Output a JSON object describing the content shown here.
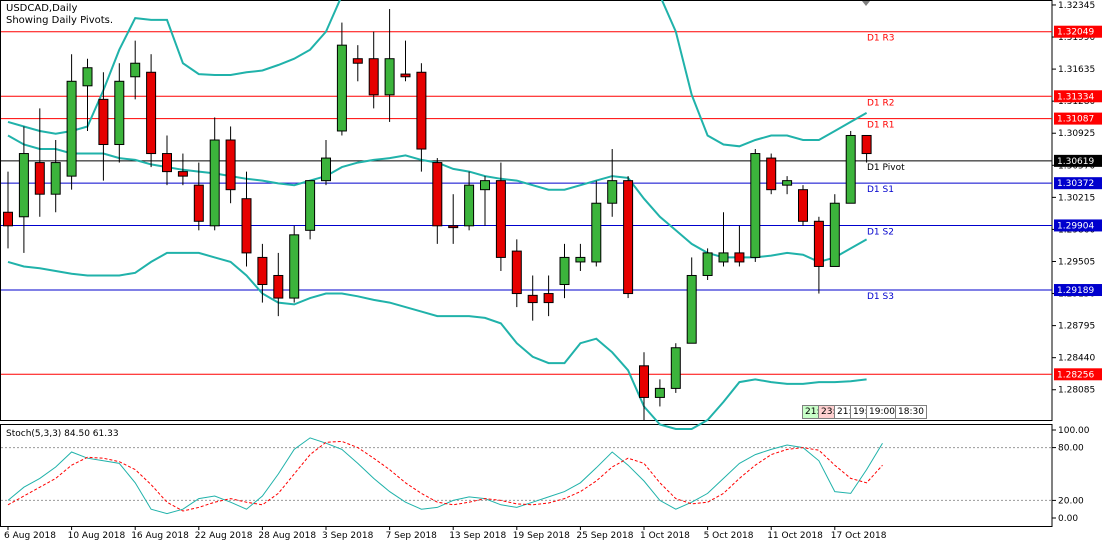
{
  "header": {
    "symbol": "USDCAD,Daily",
    "subtitle": "Showing Daily Pivots."
  },
  "colors": {
    "bull": "#3cb43c",
    "bear": "#e60000",
    "bollinger": "#20b2aa",
    "resistance": "#ff0000",
    "support": "#0000cd",
    "pivot": "#000000",
    "stoch_main": "#20b2aa",
    "stoch_signal": "#ff0000",
    "grid": "#000000"
  },
  "sessions": [
    "21:",
    "23:",
    "21:",
    "19:",
    "19:00",
    "18:30"
  ],
  "chart_data": [
    {
      "type": "candlestick",
      "symbol": "USDCAD",
      "timeframe": "Daily",
      "ylim": [
        1.2775,
        1.324
      ],
      "y_ticks": [
        "1.32345",
        "1.31990",
        "1.31635",
        "1.31280",
        "1.30925",
        "1.30570",
        "1.30215",
        "1.29860",
        "1.29505",
        "1.29150",
        "1.28795",
        "1.28440",
        "1.28085"
      ],
      "x_ticks": [
        "6 Aug 2018",
        "10 Aug 2018",
        "16 Aug 2018",
        "22 Aug 2018",
        "28 Aug 2018",
        "3 Sep 2018",
        "7 Sep 2018",
        "13 Sep 2018",
        "19 Sep 2018",
        "25 Sep 2018",
        "1 Oct 2018",
        "5 Oct 2018",
        "11 Oct 2018",
        "17 Oct 2018"
      ],
      "candles": [
        {
          "o": 1.3005,
          "h": 1.305,
          "l": 1.2965,
          "c": 1.299
        },
        {
          "o": 1.3,
          "h": 1.31,
          "l": 1.296,
          "c": 1.307
        },
        {
          "o": 1.306,
          "h": 1.312,
          "l": 1.3,
          "c": 1.3025
        },
        {
          "o": 1.3025,
          "h": 1.3085,
          "l": 1.3005,
          "c": 1.306
        },
        {
          "o": 1.3045,
          "h": 1.318,
          "l": 1.303,
          "c": 1.315
        },
        {
          "o": 1.3145,
          "h": 1.3175,
          "l": 1.3095,
          "c": 1.3165
        },
        {
          "o": 1.313,
          "h": 1.316,
          "l": 1.304,
          "c": 1.308
        },
        {
          "o": 1.308,
          "h": 1.317,
          "l": 1.306,
          "c": 1.315
        },
        {
          "o": 1.3155,
          "h": 1.3195,
          "l": 1.313,
          "c": 1.317
        },
        {
          "o": 1.316,
          "h": 1.318,
          "l": 1.3055,
          "c": 1.307
        },
        {
          "o": 1.307,
          "h": 1.309,
          "l": 1.3035,
          "c": 1.305
        },
        {
          "o": 1.305,
          "h": 1.307,
          "l": 1.3035,
          "c": 1.3045
        },
        {
          "o": 1.3035,
          "h": 1.306,
          "l": 1.2985,
          "c": 1.2995
        },
        {
          "o": 1.299,
          "h": 1.311,
          "l": 1.2985,
          "c": 1.3085
        },
        {
          "o": 1.3085,
          "h": 1.31,
          "l": 1.3015,
          "c": 1.303
        },
        {
          "o": 1.302,
          "h": 1.305,
          "l": 1.2945,
          "c": 1.296
        },
        {
          "o": 1.2955,
          "h": 1.297,
          "l": 1.2905,
          "c": 1.2925
        },
        {
          "o": 1.2935,
          "h": 1.296,
          "l": 1.289,
          "c": 1.291
        },
        {
          "o": 1.291,
          "h": 1.299,
          "l": 1.2905,
          "c": 1.298
        },
        {
          "o": 1.2985,
          "h": 1.304,
          "l": 1.2975,
          "c": 1.304
        },
        {
          "o": 1.304,
          "h": 1.3085,
          "l": 1.3035,
          "c": 1.3065
        },
        {
          "o": 1.3095,
          "h": 1.3215,
          "l": 1.309,
          "c": 1.319
        },
        {
          "o": 1.3175,
          "h": 1.319,
          "l": 1.315,
          "c": 1.317
        },
        {
          "o": 1.3175,
          "h": 1.3205,
          "l": 1.312,
          "c": 1.3135
        },
        {
          "o": 1.3135,
          "h": 1.323,
          "l": 1.3105,
          "c": 1.3175
        },
        {
          "o": 1.3158,
          "h": 1.3195,
          "l": 1.315,
          "c": 1.3155
        },
        {
          "o": 1.316,
          "h": 1.317,
          "l": 1.305,
          "c": 1.3075
        },
        {
          "o": 1.306,
          "h": 1.3065,
          "l": 1.297,
          "c": 1.299
        },
        {
          "o": 1.299,
          "h": 1.3025,
          "l": 1.297,
          "c": 1.2988
        },
        {
          "o": 1.299,
          "h": 1.305,
          "l": 1.2985,
          "c": 1.3035
        },
        {
          "o": 1.303,
          "h": 1.3045,
          "l": 1.299,
          "c": 1.304
        },
        {
          "o": 1.304,
          "h": 1.306,
          "l": 1.294,
          "c": 1.2955
        },
        {
          "o": 1.2962,
          "h": 1.2975,
          "l": 1.29,
          "c": 1.2915
        },
        {
          "o": 1.2913,
          "h": 1.2935,
          "l": 1.2885,
          "c": 1.2905
        },
        {
          "o": 1.2915,
          "h": 1.2935,
          "l": 1.289,
          "c": 1.2905
        },
        {
          "o": 1.2925,
          "h": 1.297,
          "l": 1.291,
          "c": 1.2955
        },
        {
          "o": 1.295,
          "h": 1.297,
          "l": 1.294,
          "c": 1.2955
        },
        {
          "o": 1.295,
          "h": 1.304,
          "l": 1.2945,
          "c": 1.3015
        },
        {
          "o": 1.3015,
          "h": 1.3075,
          "l": 1.3,
          "c": 1.304
        },
        {
          "o": 1.304,
          "h": 1.3045,
          "l": 1.291,
          "c": 1.2915
        },
        {
          "o": 1.2835,
          "h": 1.285,
          "l": 1.2775,
          "c": 1.28
        },
        {
          "o": 1.28,
          "h": 1.282,
          "l": 1.279,
          "c": 1.281
        },
        {
          "o": 1.281,
          "h": 1.286,
          "l": 1.2805,
          "c": 1.2855
        },
        {
          "o": 1.286,
          "h": 1.2955,
          "l": 1.286,
          "c": 1.2935
        },
        {
          "o": 1.2935,
          "h": 1.2965,
          "l": 1.293,
          "c": 1.296
        },
        {
          "o": 1.295,
          "h": 1.3005,
          "l": 1.2945,
          "c": 1.296
        },
        {
          "o": 1.296,
          "h": 1.299,
          "l": 1.2945,
          "c": 1.295
        },
        {
          "o": 1.2955,
          "h": 1.3075,
          "l": 1.295,
          "c": 1.307
        },
        {
          "o": 1.3065,
          "h": 1.307,
          "l": 1.3025,
          "c": 1.303
        },
        {
          "o": 1.3035,
          "h": 1.3045,
          "l": 1.3025,
          "c": 1.304
        },
        {
          "o": 1.303,
          "h": 1.3035,
          "l": 1.299,
          "c": 1.2995
        },
        {
          "o": 1.2995,
          "h": 1.3,
          "l": 1.2915,
          "c": 1.2945
        },
        {
          "o": 1.2945,
          "h": 1.3025,
          "l": 1.2945,
          "c": 1.3015
        },
        {
          "o": 1.3015,
          "h": 1.3095,
          "l": 1.3015,
          "c": 1.309
        },
        {
          "o": 1.309,
          "h": 1.309,
          "l": 1.306,
          "c": 1.307
        }
      ],
      "bollinger": {
        "upper": [
          1.3105,
          1.31,
          1.3095,
          1.3092,
          1.3095,
          1.31,
          1.314,
          1.3185,
          1.322,
          1.3218,
          1.3218,
          1.317,
          1.3158,
          1.3157,
          1.3157,
          1.316,
          1.3162,
          1.3168,
          1.3175,
          1.3185,
          1.3205,
          1.3245,
          1.3265,
          1.3275,
          1.3275,
          1.3285,
          1.3287,
          1.328,
          1.3265,
          1.3265,
          1.3265,
          1.3265,
          1.3265,
          1.3265,
          1.327,
          1.3275,
          1.3278,
          1.328,
          1.3278,
          1.3277,
          1.327,
          1.3245,
          1.3205,
          1.3135,
          1.309,
          1.308,
          1.3078,
          1.3085,
          1.309,
          1.309,
          1.3085,
          1.3085,
          1.3095,
          1.3105,
          1.3115
        ],
        "middle": [
          1.309,
          1.308,
          1.3075,
          1.3075,
          1.307,
          1.307,
          1.307,
          1.3065,
          1.3063,
          1.3058,
          1.3055,
          1.3052,
          1.305,
          1.3048,
          1.3045,
          1.3042,
          1.304,
          1.3037,
          1.3035,
          1.304,
          1.3045,
          1.3055,
          1.306,
          1.3063,
          1.3065,
          1.3068,
          1.3063,
          1.306,
          1.3053,
          1.305,
          1.3045,
          1.3042,
          1.304,
          1.3035,
          1.303,
          1.303,
          1.3035,
          1.304,
          1.3045,
          1.3043,
          1.302,
          1.3,
          1.2985,
          1.297,
          1.296,
          1.2955,
          1.2955,
          1.2955,
          1.2957,
          1.296,
          1.2958,
          1.295,
          1.2955,
          1.2965,
          1.2975
        ],
        "lower": [
          1.295,
          1.2945,
          1.2943,
          1.294,
          1.2937,
          1.2935,
          1.2935,
          1.2935,
          1.2938,
          1.295,
          1.296,
          1.296,
          1.296,
          1.2955,
          1.295,
          1.2935,
          1.2915,
          1.2905,
          1.2903,
          1.291,
          1.2915,
          1.2915,
          1.2912,
          1.2908,
          1.2905,
          1.29,
          1.2895,
          1.289,
          1.289,
          1.289,
          1.2888,
          1.2882,
          1.286,
          1.2845,
          1.2838,
          1.2838,
          1.286,
          1.2865,
          1.285,
          1.283,
          1.279,
          1.277,
          1.2765,
          1.2765,
          1.2775,
          1.2795,
          1.2817,
          1.282,
          1.2817,
          1.2815,
          1.2815,
          1.2817,
          1.2817,
          1.2818,
          1.282
        ]
      },
      "pivot_levels": [
        {
          "label": "D1 R3",
          "value": 1.32049,
          "value_text": "1.32049",
          "kind": "resistance"
        },
        {
          "label": "D1 R2",
          "value": 1.31334,
          "value_text": "1.31334",
          "kind": "resistance"
        },
        {
          "label": "D1 R1",
          "value": 1.31087,
          "value_text": "1.31087",
          "kind": "resistance"
        },
        {
          "label": "D1 Pivot",
          "value": 1.30619,
          "value_text": "1.30619",
          "kind": "pivot"
        },
        {
          "label": "D1 S1",
          "value": 1.30372,
          "value_text": "1.30372",
          "kind": "support"
        },
        {
          "label": "D1 S2",
          "value": 1.29904,
          "value_text": "1.29904",
          "kind": "support"
        },
        {
          "label": "D1 S3",
          "value": 1.29189,
          "value_text": "1.29189",
          "kind": "support"
        },
        {
          "label": "",
          "value": 1.28256,
          "value_text": "1.28256",
          "kind": "resistance"
        }
      ]
    },
    {
      "type": "line",
      "title": "Stoch(5,3,3) 84.50 61.33",
      "ylim": [
        0,
        100
      ],
      "y_ticks": [
        "100.00",
        "80.00",
        "20.00",
        "0.00"
      ],
      "levels": [
        80,
        20
      ],
      "series": [
        {
          "name": "main",
          "values": [
            20,
            35,
            45,
            58,
            75,
            68,
            65,
            62,
            40,
            10,
            5,
            10,
            22,
            25,
            18,
            10,
            25,
            50,
            78,
            91,
            85,
            78,
            62,
            45,
            30,
            18,
            10,
            12,
            20,
            24,
            22,
            15,
            12,
            18,
            24,
            30,
            40,
            57,
            75,
            60,
            42,
            20,
            10,
            18,
            28,
            45,
            62,
            72,
            78,
            83,
            80,
            65,
            30,
            28,
            55,
            85
          ]
        },
        {
          "name": "signal",
          "values": [
            15,
            25,
            35,
            45,
            60,
            69,
            68,
            64,
            55,
            38,
            18,
            8,
            12,
            18,
            22,
            18,
            15,
            28,
            50,
            72,
            86,
            87,
            80,
            68,
            55,
            40,
            28,
            18,
            15,
            18,
            22,
            20,
            16,
            15,
            17,
            22,
            30,
            42,
            58,
            68,
            62,
            40,
            22,
            16,
            18,
            28,
            45,
            60,
            72,
            78,
            80,
            77,
            60,
            45,
            40,
            60
          ]
        }
      ]
    }
  ]
}
